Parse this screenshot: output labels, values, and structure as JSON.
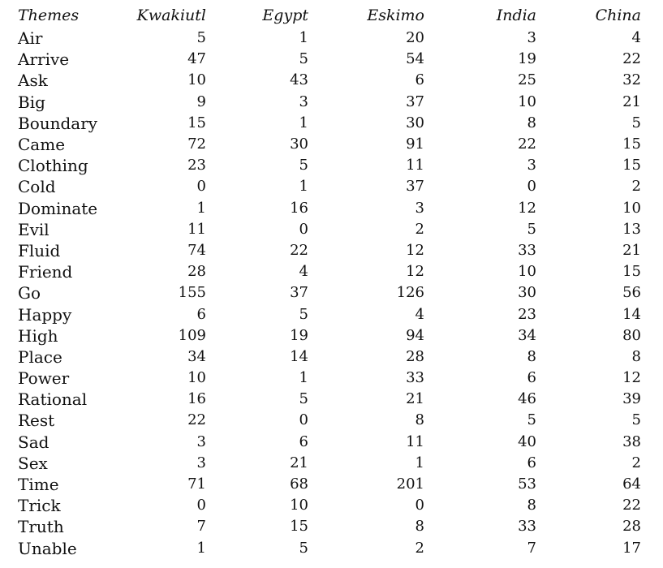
{
  "table": {
    "headers": [
      "Themes",
      "Kwakiutl",
      "Egypt",
      "Eskimo",
      "India",
      "China"
    ],
    "rows": [
      [
        "Air",
        "5",
        "1",
        "20",
        "3",
        "4"
      ],
      [
        "Arrive",
        "47",
        "5",
        "54",
        "19",
        "22"
      ],
      [
        "Ask",
        "10",
        "43",
        "6",
        "25",
        "32"
      ],
      [
        "Big",
        "9",
        "3",
        "37",
        "10",
        "21"
      ],
      [
        "Boundary",
        "15",
        "1",
        "30",
        "8",
        "5"
      ],
      [
        "Came",
        "72",
        "30",
        "91",
        "22",
        "15"
      ],
      [
        "Clothing",
        "23",
        "5",
        "11",
        "3",
        "15"
      ],
      [
        "Cold",
        "0",
        "1",
        "37",
        "0",
        "2"
      ],
      [
        "Dominate",
        "1",
        "16",
        "3",
        "12",
        "10"
      ],
      [
        "Evil",
        "11",
        "0",
        "2",
        "5",
        "13"
      ],
      [
        "Fluid",
        "74",
        "22",
        "12",
        "33",
        "21"
      ],
      [
        "Friend",
        "28",
        "4",
        "12",
        "10",
        "15"
      ],
      [
        "Go",
        "155",
        "37",
        "126",
        "30",
        "56"
      ],
      [
        "Happy",
        "6",
        "5",
        "4",
        "23",
        "14"
      ],
      [
        "High",
        "109",
        "19",
        "94",
        "34",
        "80"
      ],
      [
        "Place",
        "34",
        "14",
        "28",
        "8",
        "8"
      ],
      [
        "Power",
        "10",
        "1",
        "33",
        "6",
        "12"
      ],
      [
        "Rational",
        "16",
        "5",
        "21",
        "46",
        "39"
      ],
      [
        "Rest",
        "22",
        "0",
        "8",
        "5",
        "5"
      ],
      [
        "Sad",
        "3",
        "6",
        "11",
        "40",
        "38"
      ],
      [
        "Sex",
        "3",
        "21",
        "1",
        "6",
        "2"
      ],
      [
        "Time",
        "71",
        "68",
        "201",
        "53",
        "64"
      ],
      [
        "Trick",
        "0",
        "10",
        "0",
        "8",
        "22"
      ],
      [
        "Truth",
        "7",
        "15",
        "8",
        "33",
        "28"
      ],
      [
        "Unable",
        "1",
        "5",
        "2",
        "7",
        "17"
      ]
    ]
  }
}
